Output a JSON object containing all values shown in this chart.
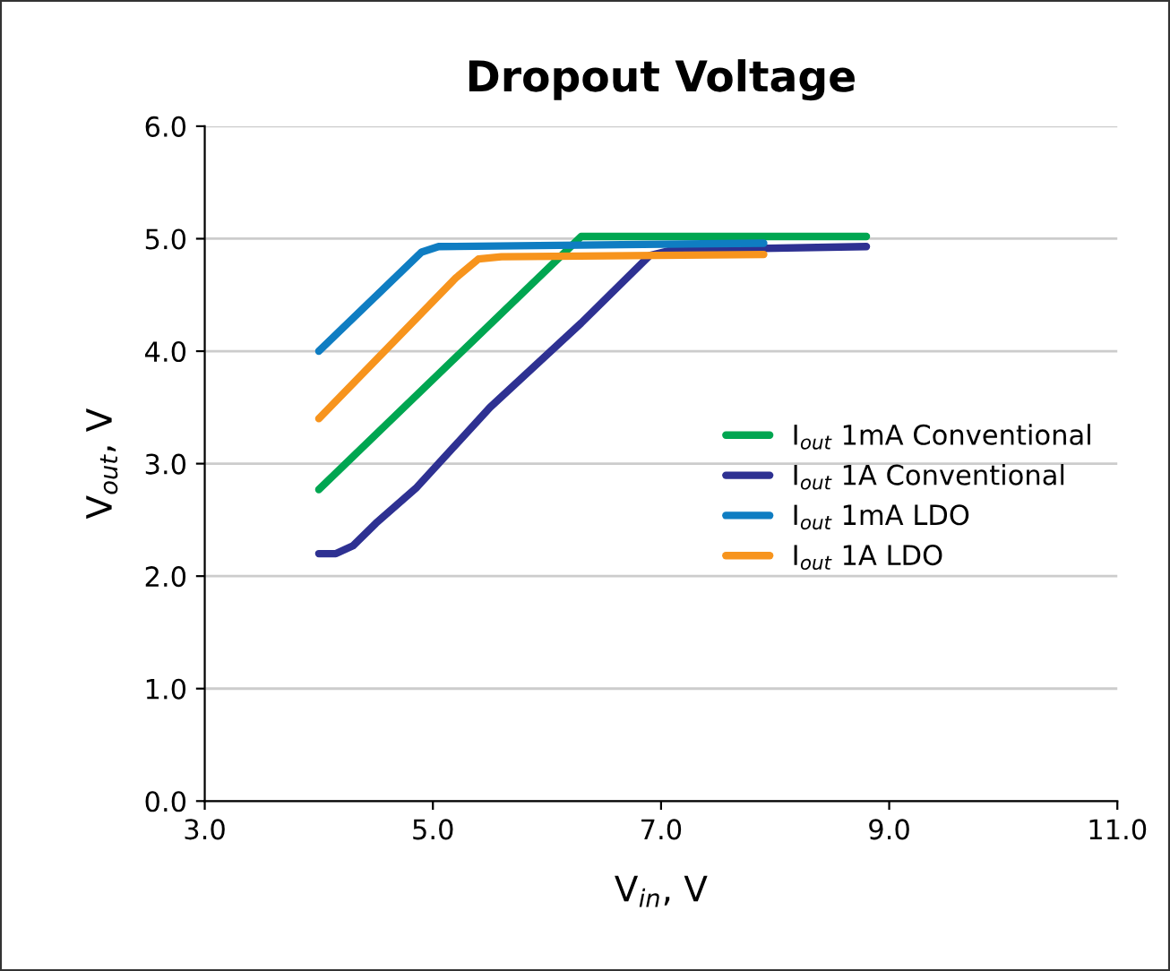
{
  "chart_data": {
    "type": "line",
    "title": "Dropout Voltage",
    "xlabel": "V$_{in}$, V",
    "ylabel": "V$_{out}$, V",
    "xlim": [
      3,
      11
    ],
    "xticks": [
      {
        "value": 3,
        "label": "3.0"
      },
      {
        "value": 5,
        "label": "5.0"
      },
      {
        "value": 7,
        "label": "7.0"
      },
      {
        "value": 9,
        "label": "9.0"
      },
      {
        "value": 11,
        "label": "11.0"
      }
    ],
    "ylim": [
      0,
      6
    ],
    "yticks": [
      {
        "value": 0,
        "label": "0.0"
      },
      {
        "value": 1,
        "label": "1.0"
      },
      {
        "value": 2,
        "label": "2.0"
      },
      {
        "value": 3,
        "label": "3.0"
      },
      {
        "value": 4,
        "label": "4.0"
      },
      {
        "value": 5,
        "label": "5.0"
      },
      {
        "value": 6,
        "label": "6.0"
      }
    ],
    "grid": "y",
    "legend": "right",
    "series": [
      {
        "name": "I$_{out}$ 1mA Conventional",
        "color": "#00a651",
        "x": [
          4.0,
          6.3,
          8.8
        ],
        "values": [
          2.77,
          5.02,
          5.02
        ]
      },
      {
        "name": "I$_{out}$ 1A Conventional",
        "color": "#2e3192",
        "x": [
          4.0,
          4.15,
          4.3,
          4.5,
          4.85,
          5.5,
          6.3,
          6.9,
          7.1,
          8.8
        ],
        "values": [
          2.2,
          2.2,
          2.27,
          2.47,
          2.78,
          3.5,
          4.25,
          4.85,
          4.9,
          4.93
        ]
      },
      {
        "name": "I$_{out}$ 1mA LDO",
        "color": "#0f7dc2",
        "x": [
          4.0,
          4.9,
          5.05,
          7.9
        ],
        "values": [
          4.0,
          4.88,
          4.93,
          4.96
        ]
      },
      {
        "name": "I$_{out}$ 1A LDO",
        "color": "#f7941d",
        "x": [
          4.0,
          5.2,
          5.4,
          5.6,
          7.9
        ],
        "values": [
          3.4,
          4.65,
          4.82,
          4.84,
          4.86
        ]
      }
    ]
  }
}
